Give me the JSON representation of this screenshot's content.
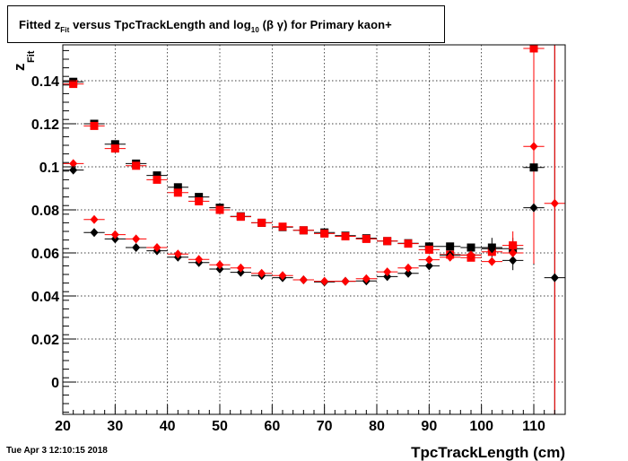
{
  "title": {
    "prefix": "Fitted  z",
    "sub1": "Fit",
    "mid": " versus TpcTrackLength and log",
    "sub2": "10",
    "suffix": " (β γ) for Primary kaon+"
  },
  "timestamp": "Tue Apr  3 12:10:15 2018",
  "chart_data": {
    "type": "scatter",
    "xlabel": "TpcTrackLength (cm)",
    "ylabel": "z",
    "ylabel_sub": "Fit",
    "xlim": [
      20,
      116
    ],
    "ylim": [
      -0.015,
      0.157
    ],
    "x_ticks": [
      20,
      30,
      40,
      50,
      60,
      70,
      80,
      90,
      100,
      110
    ],
    "y_ticks": [
      0,
      0.02,
      0.04,
      0.06,
      0.08,
      0.1,
      0.12,
      0.14
    ],
    "y_tick_labels": [
      "0",
      "0.02",
      "0.04",
      "0.06",
      "0.08",
      "0.1",
      "0.12",
      "0.14"
    ],
    "grid": true,
    "series": [
      {
        "marker": "square",
        "color": "#000000",
        "points": [
          {
            "x": 22,
            "y": 0.1395
          },
          {
            "x": 26,
            "y": 0.12
          },
          {
            "x": 30,
            "y": 0.1105
          },
          {
            "x": 34,
            "y": 0.1015
          },
          {
            "x": 38,
            "y": 0.096
          },
          {
            "x": 42,
            "y": 0.0905
          },
          {
            "x": 46,
            "y": 0.086
          },
          {
            "x": 50,
            "y": 0.081
          },
          {
            "x": 54,
            "y": 0.077
          },
          {
            "x": 58,
            "y": 0.074
          },
          {
            "x": 62,
            "y": 0.072
          },
          {
            "x": 66,
            "y": 0.0705
          },
          {
            "x": 70,
            "y": 0.0695
          },
          {
            "x": 74,
            "y": 0.068
          },
          {
            "x": 78,
            "y": 0.0668
          },
          {
            "x": 82,
            "y": 0.0655
          },
          {
            "x": 86,
            "y": 0.0645
          },
          {
            "x": 90,
            "y": 0.063
          },
          {
            "x": 94,
            "y": 0.063
          },
          {
            "x": 98,
            "y": 0.0625
          },
          {
            "x": 102,
            "y": 0.0625
          },
          {
            "x": 106,
            "y": 0.062
          },
          {
            "x": 110,
            "y": 0.0997
          }
        ],
        "yerr": [
          {
            "x": 110,
            "lo": 0.0545,
            "hi": 0.157
          },
          {
            "x": 102,
            "lo": 0.058,
            "hi": 0.067
          },
          {
            "x": 106,
            "lo": 0.057,
            "hi": 0.067
          }
        ]
      },
      {
        "marker": "square",
        "color": "#ff0000",
        "points": [
          {
            "x": 22,
            "y": 0.1385
          },
          {
            "x": 26,
            "y": 0.119
          },
          {
            "x": 30,
            "y": 0.1085
          },
          {
            "x": 34,
            "y": 0.1005
          },
          {
            "x": 38,
            "y": 0.094
          },
          {
            "x": 42,
            "y": 0.088
          },
          {
            "x": 46,
            "y": 0.084
          },
          {
            "x": 50,
            "y": 0.08
          },
          {
            "x": 54,
            "y": 0.0768
          },
          {
            "x": 58,
            "y": 0.074
          },
          {
            "x": 62,
            "y": 0.0722
          },
          {
            "x": 66,
            "y": 0.0705
          },
          {
            "x": 70,
            "y": 0.069
          },
          {
            "x": 74,
            "y": 0.0677
          },
          {
            "x": 78,
            "y": 0.0665
          },
          {
            "x": 82,
            "y": 0.0655
          },
          {
            "x": 86,
            "y": 0.0643
          },
          {
            "x": 90,
            "y": 0.0615
          },
          {
            "x": 94,
            "y": 0.0592
          },
          {
            "x": 98,
            "y": 0.0578
          },
          {
            "x": 102,
            "y": 0.0605
          },
          {
            "x": 106,
            "y": 0.0635
          },
          {
            "x": 110,
            "y": 0.155
          }
        ],
        "yerr": [
          {
            "x": 106,
            "lo": 0.058,
            "hi": 0.07
          },
          {
            "x": 110,
            "lo": 0.055,
            "hi": 0.157
          }
        ]
      },
      {
        "marker": "diamond",
        "color": "#000000",
        "points": [
          {
            "x": 22,
            "y": 0.0985
          },
          {
            "x": 26,
            "y": 0.0695
          },
          {
            "x": 30,
            "y": 0.0665
          },
          {
            "x": 34,
            "y": 0.0625
          },
          {
            "x": 38,
            "y": 0.061
          },
          {
            "x": 42,
            "y": 0.058
          },
          {
            "x": 46,
            "y": 0.0555
          },
          {
            "x": 50,
            "y": 0.0525
          },
          {
            "x": 54,
            "y": 0.051
          },
          {
            "x": 58,
            "y": 0.0495
          },
          {
            "x": 62,
            "y": 0.0485
          },
          {
            "x": 66,
            "y": 0.0475
          },
          {
            "x": 70,
            "y": 0.0465
          },
          {
            "x": 74,
            "y": 0.0468
          },
          {
            "x": 78,
            "y": 0.047
          },
          {
            "x": 82,
            "y": 0.049
          },
          {
            "x": 86,
            "y": 0.0505
          },
          {
            "x": 90,
            "y": 0.054
          },
          {
            "x": 94,
            "y": 0.059
          },
          {
            "x": 98,
            "y": 0.059
          },
          {
            "x": 102,
            "y": 0.062
          },
          {
            "x": 106,
            "y": 0.0565
          },
          {
            "x": 110,
            "y": 0.081
          },
          {
            "x": 114,
            "y": 0.0485
          }
        ],
        "yerr": [
          {
            "x": 106,
            "lo": 0.052,
            "hi": 0.061
          },
          {
            "x": 110,
            "lo": 0.055,
            "hi": 0.157
          },
          {
            "x": 114,
            "lo": -0.015,
            "hi": 0.157
          }
        ]
      },
      {
        "marker": "diamond",
        "color": "#ff0000",
        "points": [
          {
            "x": 22,
            "y": 0.1015
          },
          {
            "x": 26,
            "y": 0.0755
          },
          {
            "x": 30,
            "y": 0.0685
          },
          {
            "x": 34,
            "y": 0.0665
          },
          {
            "x": 38,
            "y": 0.0625
          },
          {
            "x": 42,
            "y": 0.0595
          },
          {
            "x": 46,
            "y": 0.057
          },
          {
            "x": 50,
            "y": 0.0545
          },
          {
            "x": 54,
            "y": 0.053
          },
          {
            "x": 58,
            "y": 0.0505
          },
          {
            "x": 62,
            "y": 0.0495
          },
          {
            "x": 66,
            "y": 0.0475
          },
          {
            "x": 70,
            "y": 0.0468
          },
          {
            "x": 74,
            "y": 0.0468
          },
          {
            "x": 78,
            "y": 0.048
          },
          {
            "x": 82,
            "y": 0.0512
          },
          {
            "x": 86,
            "y": 0.053
          },
          {
            "x": 90,
            "y": 0.0568
          },
          {
            "x": 94,
            "y": 0.058
          },
          {
            "x": 98,
            "y": 0.059
          },
          {
            "x": 102,
            "y": 0.056
          },
          {
            "x": 106,
            "y": 0.06
          },
          {
            "x": 110,
            "y": 0.1095
          },
          {
            "x": 114,
            "y": 0.083
          }
        ],
        "yerr": [
          {
            "x": 110,
            "lo": 0.055,
            "hi": 0.157
          },
          {
            "x": 114,
            "lo": -0.015,
            "hi": 0.157
          }
        ]
      }
    ]
  }
}
